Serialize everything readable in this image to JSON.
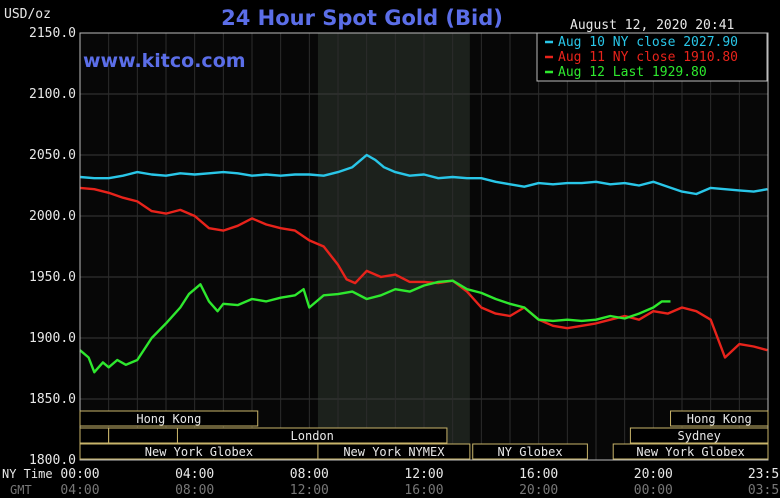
{
  "chart_data": {
    "type": "line",
    "title": "24 Hour Spot Gold (Bid)",
    "ylabel": "USD/oz",
    "date_stamp": "August 12, 2020 20:41",
    "website": "www.kitco.com",
    "ylim": [
      1800,
      2150
    ],
    "yticks": [
      "2150.0",
      "2100.0",
      "2050.0",
      "2000.0",
      "1950.0",
      "1900.0",
      "1850.0",
      "1800.0"
    ],
    "ytick_values": [
      2150,
      2100,
      2050,
      2000,
      1950,
      1900,
      1850,
      1800
    ],
    "xlim": [
      0,
      24
    ],
    "xticks": [
      "00:00",
      "04:00",
      "08:00",
      "12:00",
      "16:00",
      "20:00",
      "23:59"
    ],
    "xtick_values": [
      0,
      4,
      8,
      12,
      16,
      20,
      23.98
    ],
    "xticks_gmt": [
      "04:00",
      "08:00",
      "12:00",
      "16:00",
      "20:00",
      "00:00",
      "03:59"
    ],
    "x_axis_labels": {
      "ny": "NY Time",
      "gmt": "GMT"
    },
    "shaded_region": [
      8.3,
      13.6
    ],
    "grid": true,
    "legend_position": "top-right",
    "series": [
      {
        "name": "Aug 10 NY close 2027.90",
        "color": "#29c6e8",
        "x": [
          0,
          0.5,
          1,
          1.5,
          2,
          2.5,
          3,
          3.5,
          4,
          4.5,
          5,
          5.5,
          6,
          6.5,
          7,
          7.5,
          8,
          8.5,
          9,
          9.5,
          9.8,
          10,
          10.3,
          10.6,
          11,
          11.5,
          12,
          12.5,
          13,
          13.5,
          14,
          14.5,
          15,
          15.5,
          16,
          16.5,
          17,
          17.5,
          18,
          18.5,
          19,
          19.5,
          20,
          20.5,
          21,
          21.5,
          22,
          22.5,
          23,
          23.5,
          23.98
        ],
        "values": [
          2032,
          2031,
          2031,
          2033,
          2036,
          2034,
          2033,
          2035,
          2034,
          2035,
          2036,
          2035,
          2033,
          2034,
          2033,
          2034,
          2034,
          2033,
          2036,
          2040,
          2046,
          2050,
          2046,
          2040,
          2036,
          2033,
          2034,
          2031,
          2032,
          2031,
          2031,
          2028,
          2026,
          2024,
          2027,
          2026,
          2027,
          2027,
          2028,
          2026,
          2027,
          2025,
          2028,
          2024,
          2020,
          2018,
          2023,
          2022,
          2021,
          2020,
          2022
        ]
      },
      {
        "name": "Aug 11 NY close 1910.80",
        "color": "#e8231b",
        "x": [
          0,
          0.5,
          1,
          1.5,
          2,
          2.5,
          3,
          3.5,
          4,
          4.5,
          5,
          5.5,
          6,
          6.5,
          7,
          7.5,
          8,
          8.5,
          9,
          9.3,
          9.6,
          10,
          10.5,
          11,
          11.5,
          12,
          12.5,
          13,
          13.5,
          14,
          14.5,
          15,
          15.5,
          16,
          16.5,
          17,
          17.5,
          18,
          18.5,
          19,
          19.5,
          20,
          20.5,
          21,
          21.5,
          22,
          22.5,
          23,
          23.5,
          23.98
        ],
        "values": [
          2023,
          2022,
          2019,
          2015,
          2012,
          2004,
          2002,
          2005,
          2000,
          1990,
          1988,
          1992,
          1998,
          1993,
          1990,
          1988,
          1980,
          1975,
          1960,
          1948,
          1945,
          1955,
          1950,
          1952,
          1946,
          1946,
          1945,
          1947,
          1938,
          1925,
          1920,
          1918,
          1925,
          1915,
          1910,
          1908,
          1910,
          1912,
          1915,
          1918,
          1915,
          1922,
          1920,
          1925,
          1922,
          1915,
          1884,
          1895,
          1893,
          1890
        ]
      },
      {
        "name": "Aug 12 Last 1929.80",
        "color": "#2ee82e",
        "x": [
          0,
          0.3,
          0.5,
          0.8,
          1,
          1.3,
          1.6,
          2,
          2.5,
          3,
          3.5,
          3.8,
          4.2,
          4.5,
          4.8,
          5,
          5.5,
          6,
          6.5,
          7,
          7.5,
          7.8,
          8,
          8.5,
          9,
          9.5,
          10,
          10.5,
          11,
          11.5,
          12,
          12.5,
          13,
          13.5,
          14,
          14.5,
          15,
          15.5,
          16,
          16.5,
          17,
          17.5,
          18,
          18.5,
          19,
          19.5,
          20,
          20.3,
          20.6
        ],
        "values": [
          1890,
          1884,
          1872,
          1880,
          1876,
          1882,
          1878,
          1882,
          1900,
          1912,
          1925,
          1936,
          1944,
          1930,
          1922,
          1928,
          1927,
          1932,
          1930,
          1933,
          1935,
          1940,
          1925,
          1935,
          1936,
          1938,
          1932,
          1935,
          1940,
          1938,
          1943,
          1946,
          1947,
          1940,
          1937,
          1932,
          1928,
          1925,
          1915,
          1914,
          1915,
          1914,
          1915,
          1918,
          1916,
          1920,
          1925,
          1930,
          1930
        ]
      }
    ],
    "market_rows": [
      {
        "label": "Hong Kong",
        "start": 0,
        "end": 6.2,
        "row": 0
      },
      {
        "label": "Hong Kong",
        "start": 20.6,
        "end": 24,
        "row": 0
      },
      {
        "label": "",
        "start": 0,
        "end": 1,
        "row": 1
      },
      {
        "label": "",
        "start": 1,
        "end": 3.4,
        "row": 1
      },
      {
        "label": "London",
        "start": 3.4,
        "end": 12.8,
        "row": 1
      },
      {
        "label": "Sydney",
        "start": 19.2,
        "end": 24,
        "row": 1
      },
      {
        "label": "New York Globex",
        "start": 0,
        "end": 8.3,
        "row": 2
      },
      {
        "label": "New York NYMEX",
        "start": 8.3,
        "end": 13.6,
        "row": 2
      },
      {
        "label": "NY Globex",
        "start": 13.7,
        "end": 17.7,
        "row": 2
      },
      {
        "label": "New York Globex",
        "start": 18.6,
        "end": 24,
        "row": 2
      }
    ]
  }
}
